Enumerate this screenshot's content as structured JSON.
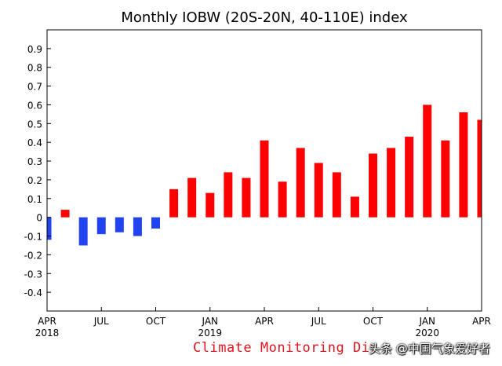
{
  "chart_data": {
    "type": "bar",
    "title": "Monthly IOBW (20S-20N, 40-110E) index",
    "xlabel": "",
    "ylabel": "",
    "ylim": [
      -0.5,
      1.0
    ],
    "yticks": [
      -0.4,
      -0.3,
      -0.2,
      -0.1,
      0,
      0.1,
      0.2,
      0.3,
      0.4,
      0.5,
      0.6,
      0.7,
      0.8,
      0.9
    ],
    "ytick_labels": [
      "-0.4",
      "-0.3",
      "-0.2",
      "-0.1",
      "0",
      "0.1",
      "0.2",
      "0.3",
      "0.4",
      "0.5",
      "0.6",
      "0.7",
      "0.8",
      "0.9"
    ],
    "categories": [
      "2018-04",
      "2018-05",
      "2018-06",
      "2018-07",
      "2018-08",
      "2018-09",
      "2018-10",
      "2018-11",
      "2018-12",
      "2019-01",
      "2019-02",
      "2019-03",
      "2019-04",
      "2019-05",
      "2019-06",
      "2019-07",
      "2019-08",
      "2019-09",
      "2019-10",
      "2019-11",
      "2019-12",
      "2020-01",
      "2020-02",
      "2020-03",
      "2020-04"
    ],
    "values": [
      -0.12,
      0.04,
      -0.15,
      -0.09,
      -0.08,
      -0.1,
      -0.06,
      0.15,
      0.21,
      0.13,
      0.24,
      0.21,
      0.41,
      0.19,
      0.37,
      0.29,
      0.24,
      0.11,
      0.34,
      0.37,
      0.43,
      0.6,
      0.41,
      0.56,
      0.52
    ],
    "xtick_labels": [
      {
        "index": 0,
        "month": "APR",
        "year": "2018"
      },
      {
        "index": 3,
        "month": "JUL",
        "year": ""
      },
      {
        "index": 6,
        "month": "OCT",
        "year": ""
      },
      {
        "index": 9,
        "month": "JAN",
        "year": "2019"
      },
      {
        "index": 12,
        "month": "APR",
        "year": ""
      },
      {
        "index": 15,
        "month": "JUL",
        "year": ""
      },
      {
        "index": 18,
        "month": "OCT",
        "year": ""
      },
      {
        "index": 21,
        "month": "JAN",
        "year": "2020"
      },
      {
        "index": 24,
        "month": "APR",
        "year": ""
      }
    ],
    "colors": {
      "positive": "#ff0000",
      "negative": "#2244ee"
    },
    "grid": false
  },
  "credit": "Climate Monitoring Div",
  "watermark": "头条 @中国气象爱好者"
}
